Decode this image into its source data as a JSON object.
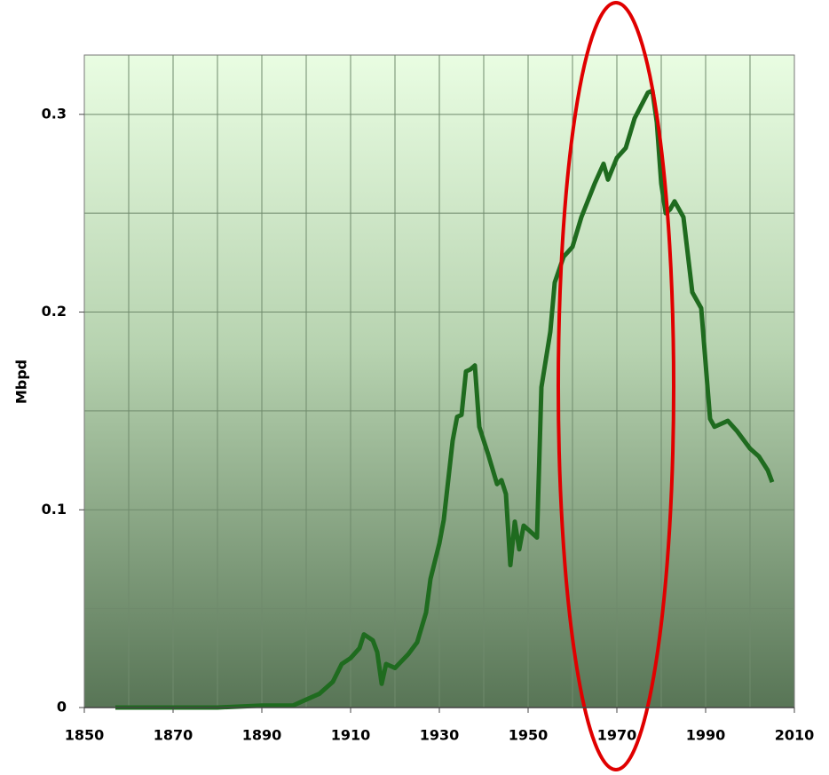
{
  "chart_data": {
    "type": "line",
    "ylabel": "Mbpd",
    "x": [
      1857,
      1880,
      1890,
      1897,
      1900,
      1903,
      1906,
      1908,
      1910,
      1912,
      1913,
      1915,
      1916,
      1917,
      1918,
      1920,
      1923,
      1925,
      1927,
      1928,
      1930,
      1931,
      1933,
      1934,
      1935,
      1936,
      1937,
      1938,
      1939,
      1941,
      1943,
      1944,
      1945,
      1946,
      1947,
      1948,
      1949,
      1950,
      1952,
      1953,
      1955,
      1956,
      1958,
      1960,
      1962,
      1965,
      1967,
      1968,
      1970,
      1972,
      1974,
      1977,
      1978,
      1979,
      1980,
      1981,
      1982,
      1983,
      1985,
      1987,
      1989,
      1991,
      1992,
      1995,
      1997,
      2000,
      2002,
      2004,
      2005
    ],
    "series": [
      {
        "color": "#1f6b1f",
        "values": [
          0,
          0,
          0.001,
          0.001,
          0.004,
          0.007,
          0.013,
          0.022,
          0.025,
          0.03,
          0.037,
          0.034,
          0.028,
          0.012,
          0.022,
          0.02,
          0.027,
          0.033,
          0.048,
          0.065,
          0.083,
          0.095,
          0.135,
          0.147,
          0.148,
          0.17,
          0.171,
          0.173,
          0.142,
          0.128,
          0.113,
          0.115,
          0.108,
          0.072,
          0.094,
          0.08,
          0.092,
          0.09,
          0.086,
          0.162,
          0.19,
          0.215,
          0.228,
          0.233,
          0.248,
          0.265,
          0.275,
          0.267,
          0.278,
          0.283,
          0.298,
          0.311,
          0.312,
          0.296,
          0.265,
          0.25,
          0.252,
          0.256,
          0.248,
          0.21,
          0.202,
          0.146,
          0.142,
          0.145,
          0.14,
          0.131,
          0.127,
          0.12,
          0.114
        ]
      }
    ],
    "xlim": [
      1850,
      2010
    ],
    "xticks": [
      1850,
      1870,
      1890,
      1910,
      1930,
      1950,
      1970,
      1990,
      2010
    ],
    "xgrid": [
      1860,
      1870,
      1880,
      1890,
      1900,
      1910,
      1920,
      1930,
      1940,
      1950,
      1960,
      1970,
      1980,
      1990,
      2000
    ],
    "ylim": [
      0,
      0.33
    ],
    "yticks": [
      0,
      0.1,
      0.2,
      0.3
    ],
    "ygrid": [
      0.05,
      0.1,
      0.15,
      0.2,
      0.25,
      0.3
    ],
    "grid": true
  }
}
